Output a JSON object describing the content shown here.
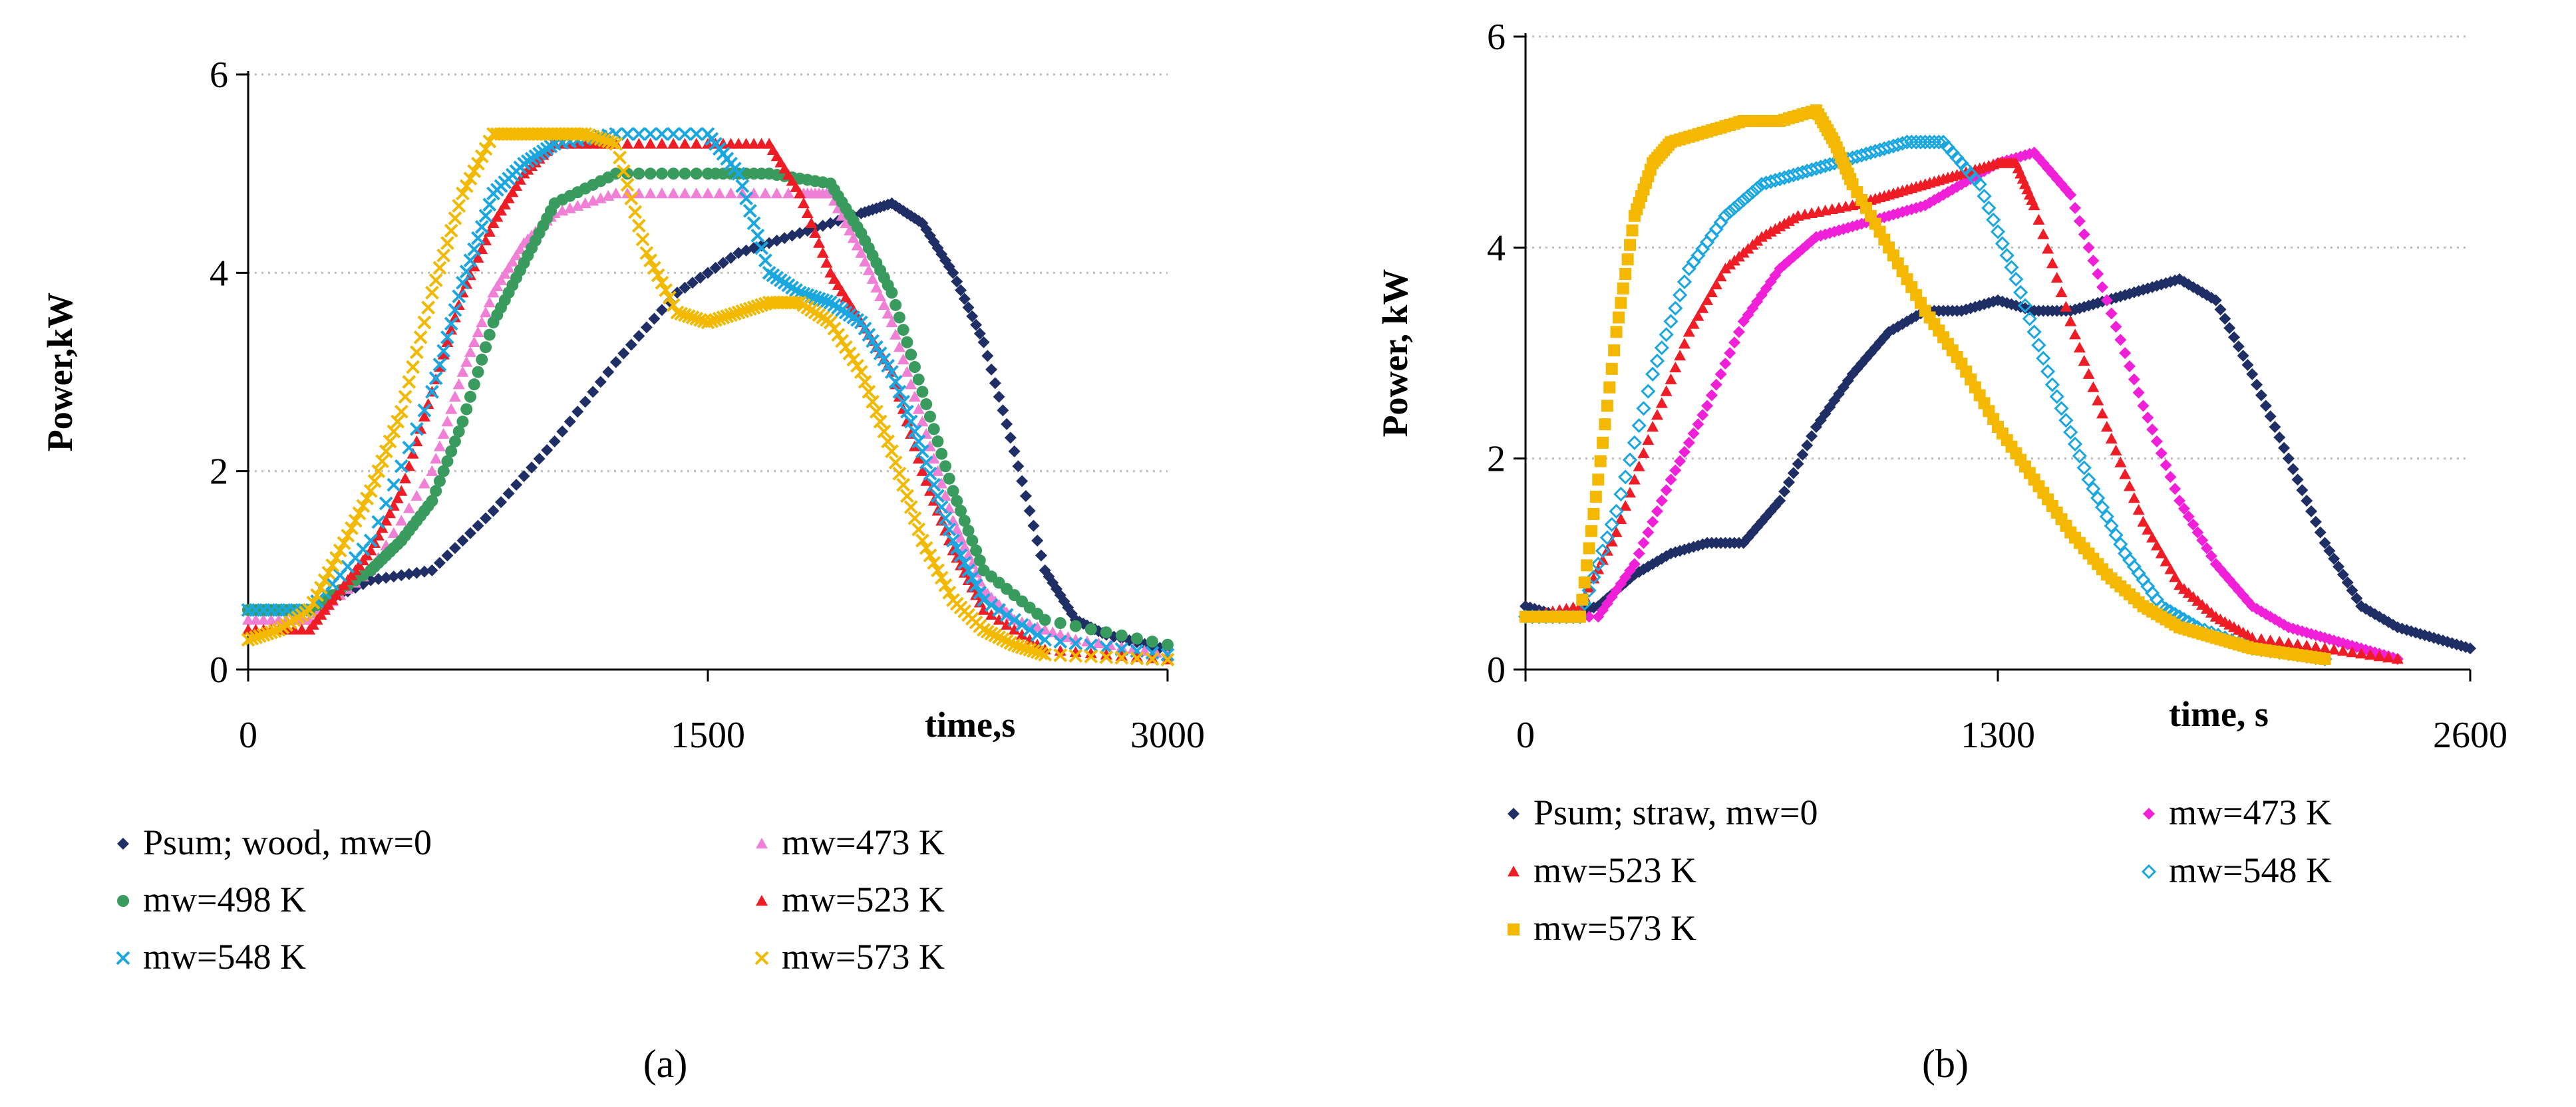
{
  "chart_data": [
    {
      "type": "scatter",
      "panel_label": "a",
      "xlabel": "time,s",
      "ylabel": "Power,kW",
      "xlim": [
        0,
        3000
      ],
      "ylim": [
        0,
        6
      ],
      "xticks": [
        "0",
        "1500",
        "3000"
      ],
      "yticks": [
        "0",
        "2",
        "4",
        "6"
      ],
      "grid": "horizontal dotted",
      "legend_position": "below",
      "series": [
        {
          "name": "Psum; wood, mw=0",
          "color": "#1f2f66",
          "marker": "diamond",
          "x": [
            0,
            200,
            400,
            600,
            800,
            1000,
            1200,
            1400,
            1600,
            1800,
            2000,
            2100,
            2200,
            2300,
            2400,
            2500,
            2600,
            2700,
            2800,
            3000
          ],
          "y": [
            0.6,
            0.6,
            0.9,
            1.0,
            1.6,
            2.3,
            3.1,
            3.8,
            4.2,
            4.4,
            4.6,
            4.7,
            4.5,
            4.0,
            3.3,
            2.2,
            1.0,
            0.5,
            0.35,
            0.2
          ]
        },
        {
          "name": "mw=473 K",
          "color": "#f07fd6",
          "marker": "triangle",
          "x": [
            0,
            200,
            400,
            600,
            700,
            800,
            900,
            1000,
            1200,
            1500,
            1800,
            1900,
            2000,
            2100,
            2200,
            2300,
            2400,
            2500,
            2700,
            3000
          ],
          "y": [
            0.5,
            0.5,
            1.0,
            2.0,
            3.0,
            3.8,
            4.3,
            4.6,
            4.8,
            4.8,
            4.8,
            4.8,
            4.2,
            3.5,
            2.5,
            1.5,
            0.8,
            0.5,
            0.3,
            0.15
          ]
        },
        {
          "name": "mw=498 K",
          "color": "#3a9b5e",
          "marker": "circle",
          "x": [
            0,
            200,
            400,
            500,
            600,
            700,
            800,
            900,
            1000,
            1200,
            1500,
            1700,
            1900,
            2000,
            2100,
            2200,
            2300,
            2400,
            2600,
            3000
          ],
          "y": [
            0.6,
            0.6,
            1.0,
            1.3,
            1.7,
            2.5,
            3.5,
            4.1,
            4.7,
            5.0,
            5.0,
            5.0,
            4.9,
            4.4,
            3.8,
            2.8,
            1.8,
            1.0,
            0.5,
            0.25
          ]
        },
        {
          "name": "mw=523 K",
          "color": "#ee1c25",
          "marker": "triangle",
          "x": [
            0,
            200,
            300,
            400,
            500,
            600,
            700,
            800,
            900,
            1000,
            1200,
            1500,
            1700,
            1800,
            1900,
            2000,
            2100,
            2200,
            2300,
            2400,
            2600,
            3000
          ],
          "y": [
            0.4,
            0.4,
            0.8,
            1.2,
            1.8,
            2.8,
            3.8,
            4.5,
            5.0,
            5.3,
            5.3,
            5.3,
            5.3,
            4.8,
            4.0,
            3.5,
            3.0,
            2.0,
            1.2,
            0.6,
            0.2,
            0.1
          ]
        },
        {
          "name": "mw=548 K",
          "color": "#1aa7e0",
          "marker": "x",
          "x": [
            0,
            200,
            400,
            600,
            700,
            800,
            900,
            1000,
            1200,
            1500,
            1600,
            1700,
            1800,
            1900,
            2000,
            2100,
            2200,
            2300,
            2400,
            2600,
            3000
          ],
          "y": [
            0.6,
            0.6,
            1.3,
            2.8,
            3.9,
            4.8,
            5.1,
            5.3,
            5.4,
            5.4,
            5.0,
            4.0,
            3.8,
            3.7,
            3.5,
            3.0,
            2.2,
            1.3,
            0.7,
            0.3,
            0.15
          ]
        },
        {
          "name": "mw=573 K",
          "color": "#f2b900",
          "marker": "x",
          "x": [
            0,
            100,
            200,
            300,
            400,
            500,
            600,
            700,
            800,
            900,
            1000,
            1100,
            1200,
            1300,
            1400,
            1500,
            1600,
            1700,
            1800,
            1900,
            2000,
            2100,
            2200,
            2300,
            2400,
            2500,
            2600,
            3000
          ],
          "y": [
            0.3,
            0.4,
            0.6,
            1.2,
            1.8,
            2.6,
            3.8,
            4.8,
            5.4,
            5.4,
            5.4,
            5.4,
            5.3,
            4.2,
            3.6,
            3.5,
            3.6,
            3.7,
            3.7,
            3.5,
            3.0,
            2.2,
            1.3,
            0.7,
            0.4,
            0.25,
            0.15,
            0.1
          ]
        }
      ]
    },
    {
      "type": "scatter",
      "panel_label": "b",
      "xlabel": "time, s",
      "ylabel": "Power, kW",
      "xlim": [
        0,
        2600
      ],
      "ylim": [
        0,
        6
      ],
      "xticks": [
        "0",
        "1300",
        "2600"
      ],
      "yticks": [
        "0",
        "2",
        "4",
        "6"
      ],
      "grid": "horizontal dotted",
      "legend_position": "below",
      "series": [
        {
          "name": "Psum; straw, mw=0",
          "color": "#1f2f66",
          "marker": "diamond",
          "x": [
            0,
            100,
            200,
            300,
            400,
            500,
            600,
            700,
            800,
            900,
            1000,
            1100,
            1200,
            1300,
            1400,
            1500,
            1600,
            1700,
            1800,
            1900,
            2000,
            2100,
            2200,
            2300,
            2400,
            2500,
            2600
          ],
          "y": [
            0.6,
            0.5,
            0.6,
            0.9,
            1.1,
            1.2,
            1.2,
            1.6,
            2.3,
            2.8,
            3.2,
            3.4,
            3.4,
            3.5,
            3.4,
            3.4,
            3.5,
            3.6,
            3.7,
            3.5,
            2.8,
            2.0,
            1.2,
            0.6,
            0.4,
            0.3,
            0.2
          ]
        },
        {
          "name": "mw=473 K",
          "color": "#f020d8",
          "marker": "diamond",
          "x": [
            0,
            200,
            300,
            400,
            500,
            600,
            700,
            800,
            900,
            1000,
            1100,
            1200,
            1300,
            1400,
            1500,
            1600,
            1700,
            1800,
            1900,
            2000,
            2100,
            2200,
            2300,
            2400
          ],
          "y": [
            0.5,
            0.5,
            1.0,
            1.8,
            2.5,
            3.3,
            3.8,
            4.1,
            4.2,
            4.3,
            4.4,
            4.6,
            4.8,
            4.9,
            4.5,
            3.5,
            2.5,
            1.6,
            1.0,
            0.6,
            0.4,
            0.3,
            0.2,
            0.1
          ]
        },
        {
          "name": "mw=523 K",
          "color": "#ee1c25",
          "marker": "triangle",
          "x": [
            0,
            150,
            250,
            350,
            450,
            550,
            650,
            750,
            900,
            1000,
            1100,
            1200,
            1300,
            1350,
            1400,
            1500,
            1600,
            1700,
            1800,
            1900,
            2000,
            2200,
            2400
          ],
          "y": [
            0.5,
            0.6,
            1.3,
            2.3,
            3.2,
            3.8,
            4.1,
            4.3,
            4.4,
            4.5,
            4.6,
            4.7,
            4.8,
            4.8,
            4.4,
            3.3,
            2.3,
            1.4,
            0.8,
            0.5,
            0.3,
            0.2,
            0.1
          ]
        },
        {
          "name": "mw=548 K",
          "color": "#1aa7e0",
          "marker": "diamond-open",
          "x": [
            0,
            150,
            250,
            350,
            450,
            550,
            650,
            750,
            850,
            950,
            1050,
            1150,
            1250,
            1350,
            1450,
            1550,
            1650,
            1750,
            1850,
            2000,
            2200
          ],
          "y": [
            0.5,
            0.5,
            1.5,
            2.8,
            3.8,
            4.3,
            4.6,
            4.7,
            4.8,
            4.9,
            5.0,
            5.0,
            4.6,
            3.7,
            2.7,
            1.8,
            1.1,
            0.6,
            0.4,
            0.2,
            0.1
          ]
        },
        {
          "name": "mw=573 K",
          "color": "#f5b800",
          "marker": "square",
          "x": [
            0,
            100,
            150,
            200,
            250,
            300,
            350,
            400,
            500,
            600,
            700,
            800,
            850,
            900,
            1000,
            1100,
            1200,
            1300,
            1400,
            1500,
            1600,
            1700,
            1800,
            1900,
            2000,
            2100,
            2200
          ],
          "y": [
            0.5,
            0.5,
            0.5,
            1.8,
            3.2,
            4.3,
            4.8,
            5.0,
            5.1,
            5.2,
            5.2,
            5.3,
            5.0,
            4.6,
            4.0,
            3.4,
            2.9,
            2.3,
            1.8,
            1.3,
            0.9,
            0.6,
            0.4,
            0.3,
            0.2,
            0.15,
            0.1
          ]
        }
      ]
    }
  ],
  "captions": {
    "a": "(a)",
    "b": "(b)"
  }
}
